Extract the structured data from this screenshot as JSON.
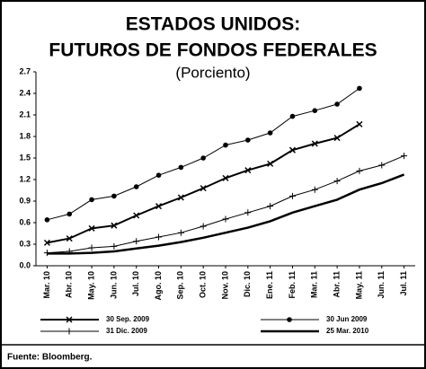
{
  "chart_data": {
    "type": "line",
    "title": "ESTADOS UNIDOS:",
    "subtitle": "FUTUROS DE FONDOS FEDERALES",
    "y_label": "(Porciento)",
    "source": "Fuente: Bloomberg.",
    "categories": [
      "Mar. 10",
      "Abr. 10",
      "May. 10",
      "Jun. 10",
      "Jul. 10",
      "Ago. 10",
      "Sep. 10",
      "Oct. 10",
      "Nov. 10",
      "Dic. 10",
      "Ene. 11",
      "Feb. 11",
      "Mar. 11",
      "Abr. 11",
      "May. 11",
      "Jun. 11",
      "Jul. 11"
    ],
    "series": [
      {
        "name": "30 Sep. 2009",
        "color": "#000000",
        "marker": "x",
        "width": 2,
        "values": [
          0.32,
          0.38,
          0.52,
          0.56,
          0.7,
          0.83,
          0.95,
          1.08,
          1.22,
          1.33,
          1.42,
          1.61,
          1.7,
          1.78,
          1.97,
          null,
          null
        ]
      },
      {
        "name": "30 Jun 2009",
        "color": "#000000",
        "marker": "circle",
        "width": 1,
        "values": [
          0.64,
          0.72,
          0.92,
          0.97,
          1.1,
          1.26,
          1.37,
          1.5,
          1.68,
          1.75,
          1.85,
          2.08,
          2.16,
          2.25,
          2.47,
          null,
          null
        ]
      },
      {
        "name": "31 Dic. 2009",
        "color": "#000000",
        "marker": "plus",
        "width": 1,
        "values": [
          0.18,
          0.2,
          0.25,
          0.27,
          0.34,
          0.4,
          0.46,
          0.55,
          0.65,
          0.74,
          0.83,
          0.97,
          1.06,
          1.18,
          1.32,
          1.4,
          1.53
        ]
      },
      {
        "name": "25 Mar. 2010",
        "color": "#000000",
        "marker": "none",
        "width": 2.5,
        "values": [
          0.17,
          0.17,
          0.18,
          0.2,
          0.24,
          0.28,
          0.33,
          0.39,
          0.46,
          0.53,
          0.62,
          0.74,
          0.83,
          0.92,
          1.06,
          1.15,
          1.27
        ]
      }
    ],
    "ylim": [
      0,
      2.7
    ],
    "yticks": [
      {
        "value": 0,
        "label": "0.0"
      },
      0.3,
      0.6,
      0.9,
      1.2,
      1.5,
      1.8,
      2.1,
      2.4,
      2.7
    ],
    "grid": false
  }
}
